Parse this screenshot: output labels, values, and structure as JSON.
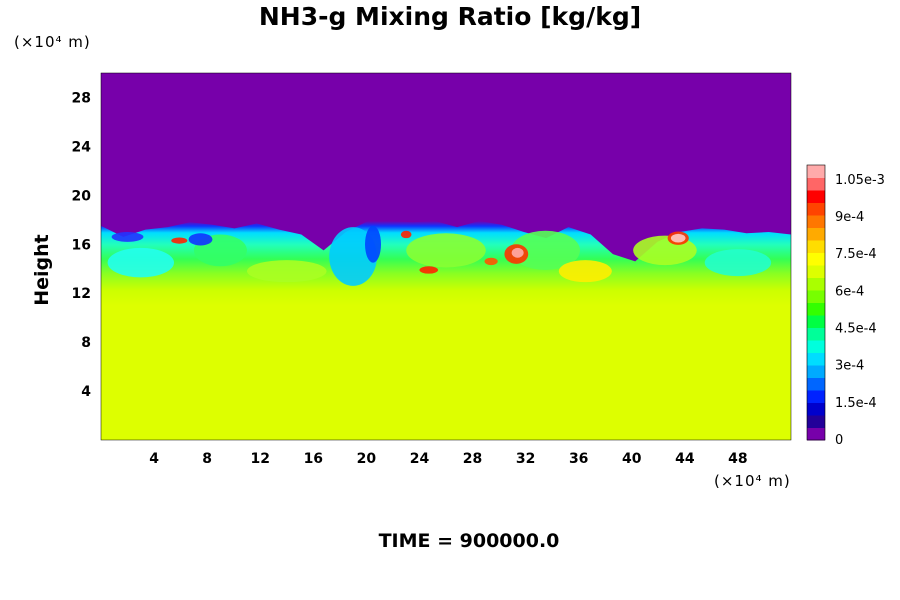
{
  "chart_data": {
    "type": "heatmap",
    "title": "NH3-g Mixing Ratio [kg/kg]",
    "ylabel": "Height",
    "xunit": "(×10⁴ m)",
    "yunit": "(×10⁴ m)",
    "footer": "TIME = 900000.0",
    "xlim": [
      0,
      52
    ],
    "ylim": [
      0,
      30
    ],
    "x_ticks": [
      "4",
      "8",
      "12",
      "16",
      "20",
      "24",
      "28",
      "32",
      "36",
      "40",
      "44",
      "48"
    ],
    "y_ticks": [
      "4",
      "8",
      "12",
      "16",
      "20",
      "24",
      "28"
    ],
    "colorbar_ticks": [
      "0",
      "1.5e-4",
      "3e-4",
      "4.5e-4",
      "6e-4",
      "7.5e-4",
      "9e-4",
      "1.05e-3"
    ],
    "colorbar_range": [
      0,
      0.00111
    ],
    "regions": [
      {
        "y": [
          0,
          11
        ],
        "value": 0.00078
      },
      {
        "y": [
          11,
          18
        ],
        "value": "mixed 0 to 1.1e-3 (turbulent layer)"
      },
      {
        "y": [
          18,
          30
        ],
        "value": 0
      }
    ],
    "colors": {
      "top_layer": "#7700aa",
      "bottom_layer": "#ddff00"
    }
  }
}
